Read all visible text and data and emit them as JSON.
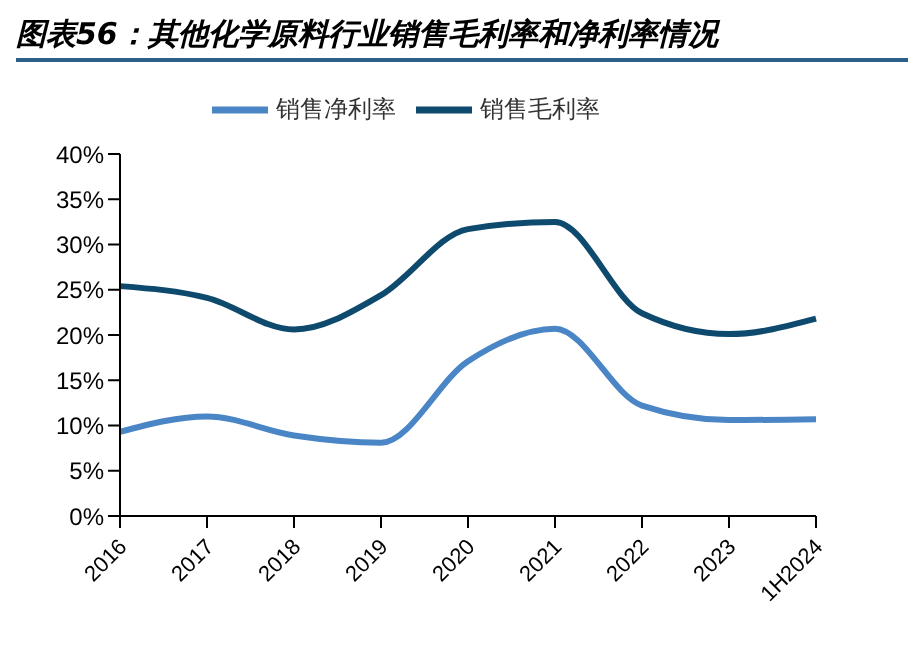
{
  "chart_data": {
    "type": "line",
    "title": "图表56：其他化学原料行业销售毛利率和净利率情况",
    "categories": [
      "2016",
      "2017",
      "2018",
      "2019",
      "2020",
      "2021",
      "2022",
      "2023",
      "1H2024"
    ],
    "series": [
      {
        "name": "销售毛利率",
        "color": "#0e4a6e",
        "values": [
          25.4,
          24.1,
          20.6,
          24.4,
          31.7,
          32.5,
          22.4,
          20.1,
          21.8
        ]
      },
      {
        "name": "销售净利率",
        "color": "#4a86c5",
        "values": [
          9.3,
          11.0,
          8.9,
          8.1,
          17.1,
          20.7,
          12.2,
          10.6,
          10.7
        ]
      }
    ],
    "ylim": [
      0,
      40
    ],
    "yticks": [
      {
        "value": 0,
        "label": "0%"
      },
      {
        "value": 5,
        "label": "5%"
      },
      {
        "value": 10,
        "label": "10%"
      },
      {
        "value": 15,
        "label": "15%"
      },
      {
        "value": 20,
        "label": "20%"
      },
      {
        "value": 25,
        "label": "25%"
      },
      {
        "value": 30,
        "label": "30%"
      },
      {
        "value": 35,
        "label": "35%"
      },
      {
        "value": 40,
        "label": "40%"
      }
    ],
    "legend": "top",
    "grid": false,
    "marker": "none",
    "line_style": "solid"
  }
}
